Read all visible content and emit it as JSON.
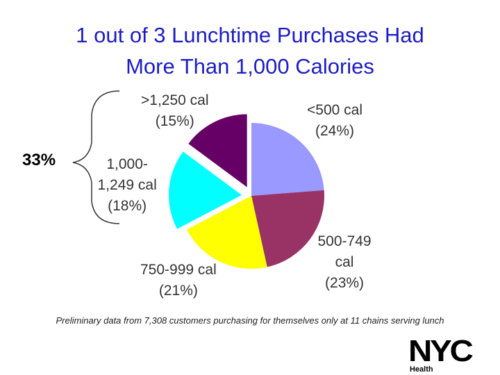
{
  "title_line1": "1 out of 3 Lunchtime Purchases Had",
  "title_line2": "More Than 1,000 Calories",
  "bracket_label": "33%",
  "footnote": "Preliminary data from 7,308 customers purchasing for themselves only at 11 chains serving lunch",
  "logo": {
    "text": "NYC",
    "subtext": "Health"
  },
  "chart_data": {
    "type": "pie",
    "title": "1 out of 3 Lunchtime Purchases Had More Than 1,000 Calories",
    "slices": [
      {
        "label_lines": [
          "<500 cal",
          "(24%)"
        ],
        "category": "<500 cal",
        "value": 24,
        "color": "#9999ff",
        "exploded": false
      },
      {
        "label_lines": [
          "500-749",
          "cal",
          "(23%)"
        ],
        "category": "500-749 cal",
        "value": 23,
        "color": "#993366",
        "exploded": false
      },
      {
        "label_lines": [
          "750-999 cal",
          "(21%)"
        ],
        "category": "750-999 cal",
        "value": 21,
        "color": "#ffff00",
        "exploded": false
      },
      {
        "label_lines": [
          "1,000-",
          "1,249 cal",
          "(18%)"
        ],
        "category": "1,000-1,249 cal",
        "value": 18,
        "color": "#00ffff",
        "exploded": true
      },
      {
        "label_lines": [
          ">1,250 cal",
          "(15%)"
        ],
        "category": ">1,250 cal",
        "value": 15,
        "color": "#660066",
        "exploded": true
      }
    ]
  }
}
